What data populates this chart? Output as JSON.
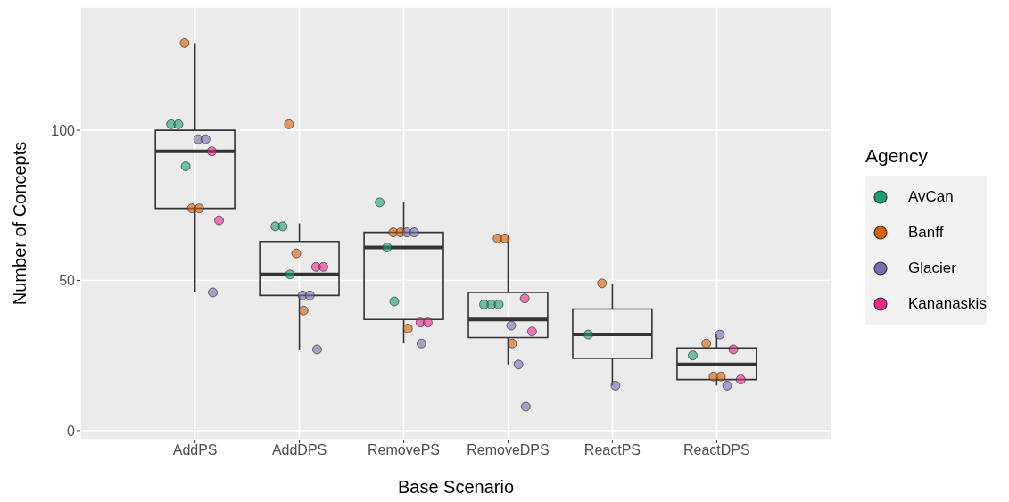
{
  "chart_data": {
    "type": "box",
    "xlabel": "Base Scenario",
    "ylabel": "Number of Concepts",
    "legend_title": "Agency",
    "categories": [
      "AddPS",
      "AddDPS",
      "RemovePS",
      "RemoveDPS",
      "ReactPS",
      "ReactDPS"
    ],
    "boxes": [
      {
        "low": 46,
        "q1": 74,
        "median": 93,
        "q3": 100,
        "high": 129
      },
      {
        "low": 27,
        "q1": 45,
        "median": 52,
        "q3": 63,
        "high": 69
      },
      {
        "low": 29,
        "q1": 37,
        "median": 61,
        "q3": 66,
        "high": 76
      },
      {
        "low": 22,
        "q1": 31,
        "median": 37,
        "q3": 46,
        "high": 65
      },
      {
        "low": 15,
        "q1": 24,
        "median": 32,
        "q3": 40.5,
        "high": 49
      },
      {
        "low": 15,
        "q1": 17,
        "median": 22,
        "q3": 27.5,
        "high": 32
      }
    ],
    "series": [
      {
        "name": "AvCan",
        "type": "scatter",
        "color": "#1b9e77",
        "x": [
          "AddPS",
          "AddPS",
          "AddPS",
          "AddDPS",
          "AddDPS",
          "AddDPS",
          "RemovePS",
          "RemovePS",
          "RemovePS",
          "RemoveDPS",
          "RemoveDPS",
          "RemoveDPS",
          "ReactPS",
          "ReactDPS"
        ],
        "values": [
          102,
          102,
          88,
          68,
          68,
          52,
          76,
          61,
          43,
          42,
          42,
          42,
          32,
          25
        ]
      },
      {
        "name": "Banff",
        "type": "scatter",
        "color": "#d95f02",
        "x": [
          "AddPS",
          "AddPS",
          "AddPS",
          "AddDPS",
          "AddDPS",
          "AddDPS",
          "RemovePS",
          "RemovePS",
          "RemovePS",
          "RemoveDPS",
          "RemoveDPS",
          "RemoveDPS",
          "ReactPS",
          "ReactDPS",
          "ReactDPS",
          "ReactDPS"
        ],
        "values": [
          129,
          74,
          74,
          102,
          59,
          40,
          66,
          66,
          34,
          64,
          64,
          29,
          49,
          29,
          18,
          18
        ]
      },
      {
        "name": "Glacier",
        "type": "scatter",
        "color": "#7570b3",
        "x": [
          "AddPS",
          "AddPS",
          "AddPS",
          "AddDPS",
          "AddDPS",
          "AddDPS",
          "RemovePS",
          "RemovePS",
          "RemovePS",
          "RemoveDPS",
          "RemoveDPS",
          "RemoveDPS",
          "ReactPS",
          "ReactDPS",
          "ReactDPS"
        ],
        "values": [
          97,
          97,
          46,
          45,
          45,
          27,
          66,
          66,
          29,
          35,
          22,
          8,
          15,
          32,
          15
        ]
      },
      {
        "name": "Kananaskis",
        "type": "scatter",
        "color": "#e7298a",
        "x": [
          "AddPS",
          "AddPS",
          "AddDPS",
          "AddDPS",
          "RemovePS",
          "RemovePS",
          "RemoveDPS",
          "RemoveDPS",
          "ReactDPS",
          "ReactDPS"
        ],
        "values": [
          93,
          70,
          54.5,
          54.5,
          36,
          36,
          44,
          33,
          27,
          17
        ]
      }
    ],
    "ylim": [
      -3,
      141
    ],
    "yticks": [
      0,
      50,
      100
    ],
    "grid": true,
    "legend": "right",
    "marker": "circle"
  }
}
